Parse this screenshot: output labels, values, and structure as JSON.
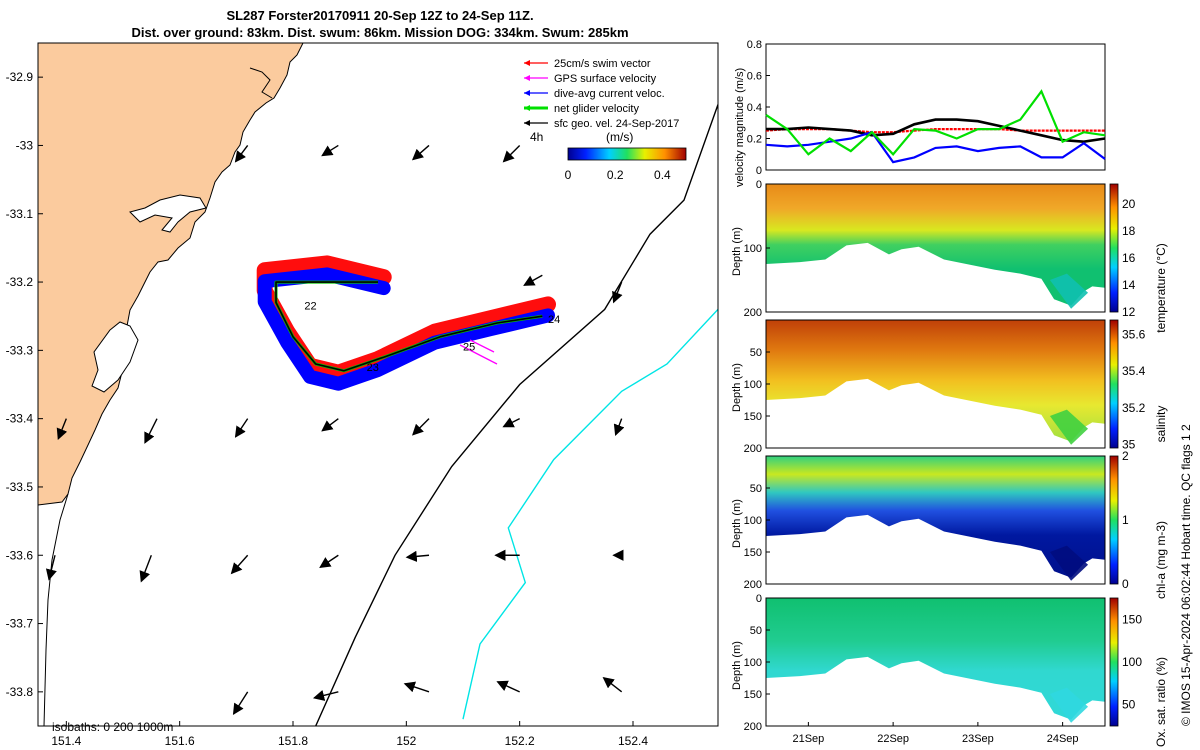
{
  "header": {
    "line1": "SL287 Forster20170911 20-Sep 12Z to 24-Sep 11Z.",
    "line2": "Dist. over ground: 83km. Dist. swum: 86km. Mission DOG: 334km. Swum: 285km"
  },
  "credit": "© IMOS 15-Apr-2024 06:02:44 Hobart time. QC flags 1 2",
  "colors": {
    "land": "#FBCB9E",
    "track_red": "#FF0000",
    "track_blue": "#0000FF",
    "isobath_200": "#000000",
    "isobath_1000": "#00E5E5",
    "velocity_green": "#00E000"
  },
  "chart_data": [
    {
      "type": "map",
      "legend": [
        "25cm/s swim vector",
        "GPS surface velocity",
        "dive-avg current veloc.",
        "net glider velocity",
        "sfc geo. vel. 24-Sep-2017"
      ],
      "legend_colors": [
        "#FF0000",
        "#FF00FF",
        "#0000FF",
        "#00E000",
        "#000000"
      ],
      "colorbar": {
        "unit": "(m/s)",
        "ticks": [
          "0",
          "0.2",
          "0.4"
        ],
        "range": [
          0,
          0.5
        ]
      },
      "time_label": "4h",
      "day_labels": [
        {
          "text": "22",
          "lon": 151.82,
          "lat": -33.24
        },
        {
          "text": "23",
          "lon": 151.93,
          "lat": -33.33
        },
        {
          "text": "25",
          "lon": 152.1,
          "lat": -33.3
        },
        {
          "text": "24",
          "lon": 152.25,
          "lat": -33.26
        }
      ],
      "lon_ticks": [
        "151.4",
        "151.6",
        "151.8",
        "152",
        "152.2",
        "152.4"
      ],
      "lat_ticks": [
        "-32.9",
        "-33",
        "-33.1",
        "-33.2",
        "-33.3",
        "-33.4",
        "-33.5",
        "-33.6",
        "-33.7",
        "-33.8"
      ],
      "xlim": [
        151.35,
        152.55
      ],
      "ylim": [
        -33.85,
        -32.85
      ],
      "isobaths_text": "isobaths: 0   200  1000m",
      "isobath_200": [
        [
          152.55,
          -32.94
        ],
        [
          152.49,
          -33.08
        ],
        [
          152.43,
          -33.13
        ],
        [
          152.35,
          -33.24
        ],
        [
          152.2,
          -33.35
        ],
        [
          152.08,
          -33.47
        ],
        [
          151.98,
          -33.6
        ],
        [
          151.91,
          -33.72
        ],
        [
          151.84,
          -33.85
        ]
      ],
      "isobath_1000": [
        [
          152.55,
          -33.24
        ],
        [
          152.46,
          -33.32
        ],
        [
          152.38,
          -33.36
        ],
        [
          152.26,
          -33.46
        ],
        [
          152.18,
          -33.56
        ],
        [
          152.21,
          -33.64
        ],
        [
          152.13,
          -33.73
        ],
        [
          152.1,
          -33.84
        ]
      ],
      "track_blue": [
        [
          151.96,
          -33.2
        ],
        [
          151.86,
          -33.18
        ],
        [
          151.75,
          -33.19
        ],
        [
          151.75,
          -33.22
        ],
        [
          151.79,
          -33.28
        ],
        [
          151.83,
          -33.33
        ],
        [
          151.88,
          -33.34
        ],
        [
          151.95,
          -33.32
        ],
        [
          152.05,
          -33.28
        ],
        [
          152.15,
          -33.26
        ],
        [
          152.25,
          -33.24
        ]
      ],
      "track_black": [
        [
          151.95,
          -33.2
        ],
        [
          151.86,
          -33.2
        ],
        [
          151.77,
          -33.2
        ],
        [
          151.77,
          -33.23
        ],
        [
          151.8,
          -33.28
        ],
        [
          151.84,
          -33.32
        ],
        [
          151.89,
          -33.33
        ],
        [
          151.96,
          -33.31
        ],
        [
          152.06,
          -33.28
        ],
        [
          152.16,
          -33.26
        ],
        [
          152.24,
          -33.25
        ]
      ],
      "current_vectors": [
        [
          151.72,
          -33.0,
          -0.3,
          -0.4
        ],
        [
          151.88,
          -33.0,
          -0.4,
          -0.25
        ],
        [
          152.04,
          -33.0,
          -0.4,
          -0.35
        ],
        [
          152.2,
          -33.0,
          -0.4,
          -0.4
        ],
        [
          152.24,
          -33.19,
          -0.45,
          -0.25
        ],
        [
          152.38,
          -33.2,
          -0.2,
          -0.5
        ],
        [
          151.4,
          -33.4,
          -0.2,
          -0.5
        ],
        [
          151.56,
          -33.4,
          -0.3,
          -0.6
        ],
        [
          151.72,
          -33.4,
          -0.3,
          -0.45
        ],
        [
          151.88,
          -33.4,
          -0.4,
          -0.3
        ],
        [
          152.04,
          -33.4,
          -0.4,
          -0.4
        ],
        [
          152.2,
          -33.4,
          -0.4,
          -0.2
        ],
        [
          152.38,
          -33.4,
          -0.15,
          -0.4
        ],
        [
          151.38,
          -33.6,
          -0.15,
          -0.6
        ],
        [
          151.55,
          -33.6,
          -0.25,
          -0.65
        ],
        [
          151.72,
          -33.6,
          -0.4,
          -0.45
        ],
        [
          151.88,
          -33.6,
          -0.45,
          -0.3
        ],
        [
          152.04,
          -33.6,
          -0.55,
          -0.05
        ],
        [
          152.2,
          -33.6,
          -0.6,
          0.0
        ],
        [
          152.38,
          -33.6,
          -0.2,
          0.0
        ],
        [
          151.72,
          -33.8,
          -0.35,
          -0.55
        ],
        [
          151.88,
          -33.8,
          -0.6,
          -0.15
        ],
        [
          152.04,
          -33.8,
          -0.6,
          0.2
        ],
        [
          152.2,
          -33.8,
          -0.55,
          0.25
        ],
        [
          152.38,
          -33.8,
          -0.45,
          0.35
        ]
      ]
    },
    {
      "type": "line",
      "ylabel": "velocity magnitude (m/s)",
      "ylim": [
        0,
        0.8
      ],
      "yticks": [
        "0",
        "0.2",
        "0.4",
        "0.6",
        "0.8"
      ],
      "x": [
        20.5,
        20.75,
        21.0,
        21.25,
        21.5,
        21.75,
        22.0,
        22.25,
        22.5,
        22.75,
        23.0,
        23.25,
        23.5,
        23.75,
        24.0,
        24.25,
        24.5
      ],
      "series": [
        {
          "values": [
            0.25,
            0.26,
            0.26,
            0.26,
            0.25,
            0.24,
            0.24,
            0.25,
            0.26,
            0.26,
            0.26,
            0.26,
            0.25,
            0.25,
            0.25,
            0.25,
            0.25
          ],
          "color": "#FF0000"
        },
        {
          "values": [
            0.26,
            0.26,
            0.27,
            0.26,
            0.25,
            0.22,
            0.23,
            0.29,
            0.32,
            0.32,
            0.31,
            0.28,
            0.25,
            0.22,
            0.19,
            0.18,
            0.2
          ],
          "color": "#000000"
        },
        {
          "values": [
            0.16,
            0.15,
            0.16,
            0.18,
            0.2,
            0.24,
            0.05,
            0.08,
            0.14,
            0.15,
            0.12,
            0.14,
            0.15,
            0.08,
            0.08,
            0.17,
            0.07
          ],
          "color": "#0000FF"
        },
        {
          "values": [
            0.35,
            0.26,
            0.1,
            0.2,
            0.12,
            0.24,
            0.1,
            0.26,
            0.25,
            0.2,
            0.26,
            0.26,
            0.32,
            0.5,
            0.18,
            0.24,
            0.22
          ],
          "color": "#00E000"
        }
      ]
    },
    {
      "type": "heatmap",
      "ylabel": "Depth (m)",
      "colorbar_label": "temperature (°C)",
      "colorbar_ticks": [
        "12",
        "14",
        "16",
        "18",
        "20"
      ],
      "clim": [
        12,
        21.5
      ],
      "ylim": [
        200,
        0
      ],
      "yticks": [
        "0",
        "100",
        "200"
      ]
    },
    {
      "type": "heatmap",
      "ylabel": "Depth (m)",
      "colorbar_label": "salinity",
      "colorbar_ticks": [
        "35",
        "35.2",
        "35.4",
        "35.6"
      ],
      "clim": [
        34.98,
        35.68
      ],
      "ylim": [
        200,
        0
      ],
      "yticks": [
        "50",
        "100",
        "150",
        "200"
      ]
    },
    {
      "type": "heatmap",
      "ylabel": "Depth (m)",
      "colorbar_label": "chl-a (mg m-3)",
      "colorbar_ticks": [
        "0",
        "1",
        "2"
      ],
      "clim": [
        0,
        2
      ],
      "ylim": [
        200,
        0
      ],
      "yticks": [
        "50",
        "100",
        "150",
        "200"
      ]
    },
    {
      "type": "heatmap",
      "ylabel": "Depth (m)",
      "colorbar_label": "Ox. sat. ratio (%)",
      "colorbar_ticks": [
        "50",
        "100",
        "150"
      ],
      "clim": [
        25,
        175
      ],
      "ylim": [
        200,
        0
      ],
      "yticks": [
        "0",
        "50",
        "100",
        "150",
        "200"
      ],
      "xticks": [
        "21Sep",
        "22Sep",
        "23Sep",
        "24Sep"
      ]
    }
  ]
}
